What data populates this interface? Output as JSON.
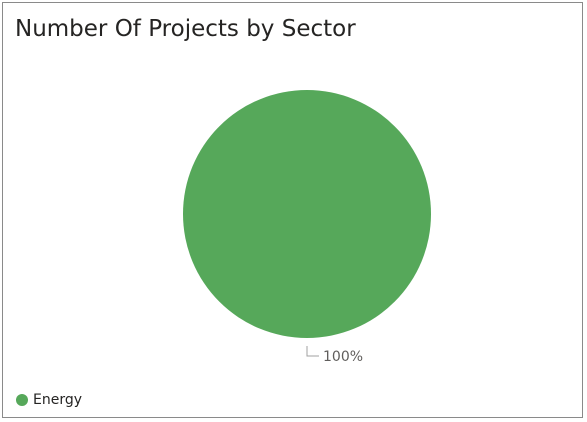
{
  "chart_data": {
    "type": "pie",
    "title": "Number Of Projects by Sector",
    "categories": [
      "Energy"
    ],
    "values": [
      100
    ],
    "data_labels": [
      "100%"
    ],
    "colors": [
      "#56a85a"
    ],
    "legend_position": "bottom-left",
    "legend": [
      {
        "label": "Energy",
        "color": "#56a85a"
      }
    ]
  }
}
